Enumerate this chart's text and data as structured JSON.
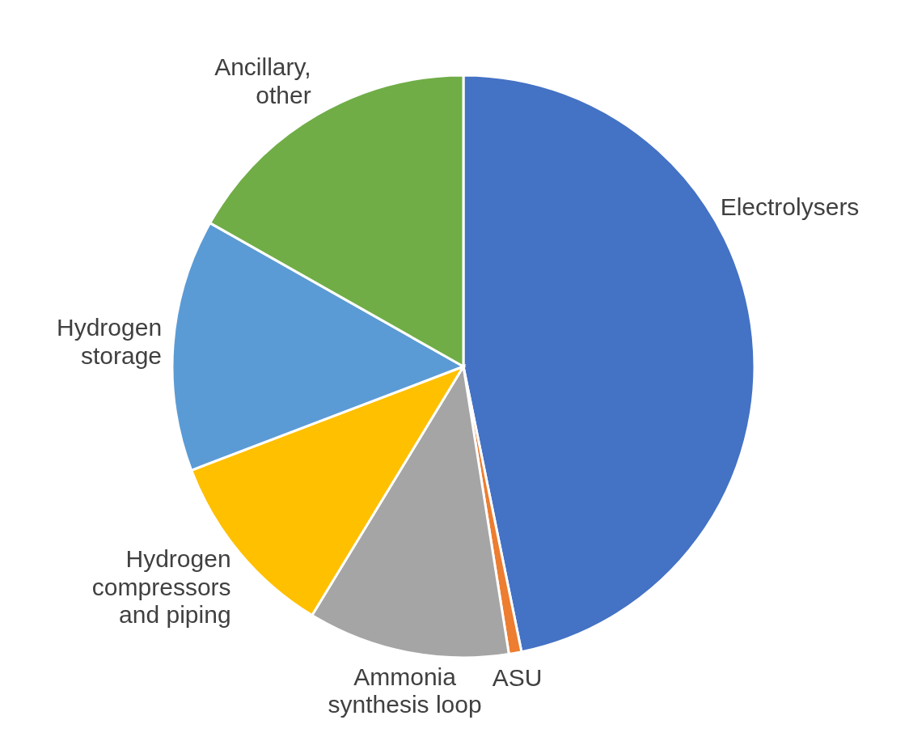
{
  "chart_data": {
    "type": "pie",
    "categories": [
      "Electrolysers",
      "ASU",
      "Ammonia synthesis loop",
      "Hydrogen compressors and piping",
      "Hydrogen storage",
      "Ancillary, other"
    ],
    "values": [
      46.8,
      0.7,
      11.2,
      10.5,
      14.0,
      16.8
    ],
    "colors": [
      "#4472c4",
      "#ed7d31",
      "#a5a5a5",
      "#ffc000",
      "#5b9bd5",
      "#70ad47"
    ],
    "legend": false
  }
}
